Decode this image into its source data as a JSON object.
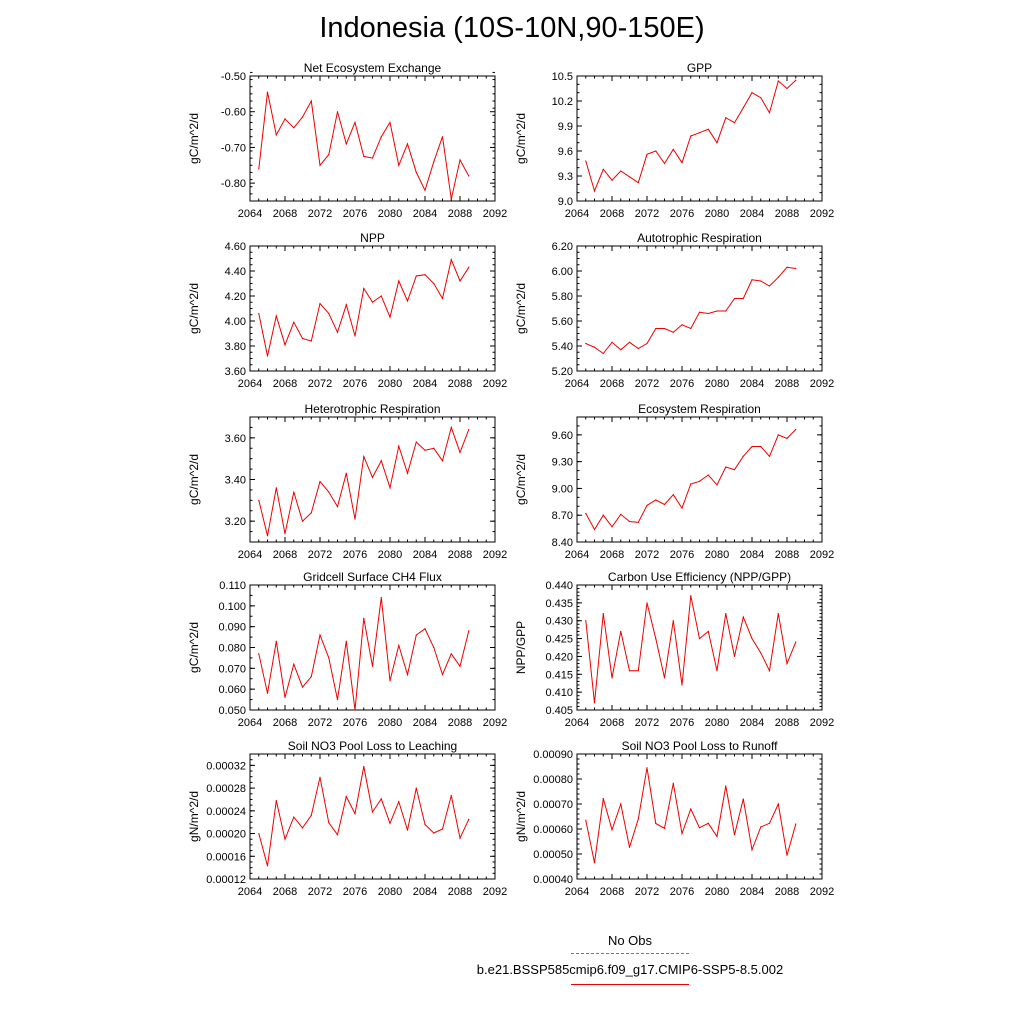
{
  "title": "Indonesia (10S-10N,90-150E)",
  "legend": {
    "obs_label": "No Obs",
    "case_label": "b.e21.BSSP585cmip6.f09_g17.CMIP6-SSP5-8.5.002",
    "obs_color": "#6666ee",
    "case_color": "#ee0000"
  },
  "chart_data": [
    {
      "type": "line",
      "title": "Net Ecosystem Exchange",
      "ylabel": "gC/m^2/d",
      "xlim": [
        2064,
        2092
      ],
      "xticks": [
        2064,
        2068,
        2072,
        2076,
        2080,
        2084,
        2088,
        2092
      ],
      "ylim": [
        -0.85,
        -0.5
      ],
      "yticks": [
        -0.8,
        -0.7,
        -0.6,
        -0.5
      ],
      "ytick_labels": [
        "-0.80",
        "-0.70",
        "-0.60",
        "-0.50"
      ],
      "minor_y": 0.02,
      "color": "#ee0000",
      "x": [
        2065,
        2066,
        2067,
        2068,
        2069,
        2070,
        2071,
        2072,
        2073,
        2074,
        2075,
        2076,
        2077,
        2078,
        2079,
        2080,
        2081,
        2082,
        2083,
        2084,
        2085,
        2086,
        2087,
        2088,
        2089
      ],
      "values": [
        -0.76,
        -0.545,
        -0.665,
        -0.62,
        -0.645,
        -0.615,
        -0.57,
        -0.75,
        -0.72,
        -0.6,
        -0.69,
        -0.63,
        -0.725,
        -0.73,
        -0.67,
        -0.63,
        -0.75,
        -0.69,
        -0.77,
        -0.82,
        -0.74,
        -0.67,
        -0.845,
        -0.735,
        -0.78
      ]
    },
    {
      "type": "line",
      "title": "GPP",
      "ylabel": "gC/m^2/d",
      "xlim": [
        2064,
        2092
      ],
      "xticks": [
        2064,
        2068,
        2072,
        2076,
        2080,
        2084,
        2088,
        2092
      ],
      "ylim": [
        9.0,
        10.5
      ],
      "yticks": [
        9.0,
        9.3,
        9.6,
        9.9,
        10.2,
        10.5
      ],
      "ytick_labels": [
        "9.0",
        "9.3",
        "9.6",
        "9.9",
        "10.2",
        "10.5"
      ],
      "minor_y": 0.1,
      "color": "#ee0000",
      "x": [
        2065,
        2066,
        2067,
        2068,
        2069,
        2070,
        2071,
        2072,
        2073,
        2074,
        2075,
        2076,
        2077,
        2078,
        2079,
        2080,
        2081,
        2082,
        2083,
        2084,
        2085,
        2086,
        2087,
        2088,
        2089
      ],
      "values": [
        9.48,
        9.12,
        9.38,
        9.25,
        9.36,
        9.29,
        9.22,
        9.56,
        9.6,
        9.45,
        9.62,
        9.46,
        9.78,
        9.82,
        9.86,
        9.7,
        10.0,
        9.94,
        10.12,
        10.3,
        10.24,
        10.06,
        10.44,
        10.35,
        10.45
      ]
    },
    {
      "type": "line",
      "title": "NPP",
      "ylabel": "gC/m^2/d",
      "xlim": [
        2064,
        2092
      ],
      "xticks": [
        2064,
        2068,
        2072,
        2076,
        2080,
        2084,
        2088,
        2092
      ],
      "ylim": [
        3.6,
        4.6
      ],
      "yticks": [
        3.6,
        3.8,
        4.0,
        4.2,
        4.4,
        4.6
      ],
      "ytick_labels": [
        "3.60",
        "3.80",
        "4.00",
        "4.20",
        "4.40",
        "4.60"
      ],
      "minor_y": 0.05,
      "color": "#ee0000",
      "x": [
        2065,
        2066,
        2067,
        2068,
        2069,
        2070,
        2071,
        2072,
        2073,
        2074,
        2075,
        2076,
        2077,
        2078,
        2079,
        2080,
        2081,
        2082,
        2083,
        2084,
        2085,
        2086,
        2087,
        2088,
        2089
      ],
      "values": [
        4.06,
        3.72,
        4.04,
        3.81,
        3.99,
        3.86,
        3.84,
        4.14,
        4.06,
        3.91,
        4.13,
        3.88,
        4.26,
        4.15,
        4.2,
        4.03,
        4.32,
        4.16,
        4.36,
        4.37,
        4.3,
        4.18,
        4.49,
        4.32,
        4.43
      ]
    },
    {
      "type": "line",
      "title": "Autotrophic Respiration",
      "ylabel": "gC/m^2/d",
      "xlim": [
        2064,
        2092
      ],
      "xticks": [
        2064,
        2068,
        2072,
        2076,
        2080,
        2084,
        2088,
        2092
      ],
      "ylim": [
        5.2,
        6.2
      ],
      "yticks": [
        5.2,
        5.4,
        5.6,
        5.8,
        6.0,
        6.2
      ],
      "ytick_labels": [
        "5.20",
        "5.40",
        "5.60",
        "5.80",
        "6.00",
        "6.20"
      ],
      "minor_y": 0.05,
      "color": "#ee0000",
      "x": [
        2065,
        2066,
        2067,
        2068,
        2069,
        2070,
        2071,
        2072,
        2073,
        2074,
        2075,
        2076,
        2077,
        2078,
        2079,
        2080,
        2081,
        2082,
        2083,
        2084,
        2085,
        2086,
        2087,
        2088,
        2089
      ],
      "values": [
        5.42,
        5.39,
        5.34,
        5.43,
        5.37,
        5.43,
        5.38,
        5.42,
        5.54,
        5.54,
        5.51,
        5.57,
        5.54,
        5.67,
        5.66,
        5.68,
        5.68,
        5.78,
        5.78,
        5.93,
        5.92,
        5.88,
        5.95,
        6.03,
        6.02
      ]
    },
    {
      "type": "line",
      "title": "Heterotrophic Respiration",
      "ylabel": "gC/m^2/d",
      "xlim": [
        2064,
        2092
      ],
      "xticks": [
        2064,
        2068,
        2072,
        2076,
        2080,
        2084,
        2088,
        2092
      ],
      "ylim": [
        3.1,
        3.7
      ],
      "yticks": [
        3.2,
        3.4,
        3.6
      ],
      "ytick_labels": [
        "3.20",
        "3.40",
        "3.60"
      ],
      "minor_y": 0.05,
      "color": "#ee0000",
      "x": [
        2065,
        2066,
        2067,
        2068,
        2069,
        2070,
        2071,
        2072,
        2073,
        2074,
        2075,
        2076,
        2077,
        2078,
        2079,
        2080,
        2081,
        2082,
        2083,
        2084,
        2085,
        2086,
        2087,
        2088,
        2089
      ],
      "values": [
        3.3,
        3.13,
        3.36,
        3.14,
        3.34,
        3.2,
        3.24,
        3.39,
        3.34,
        3.27,
        3.43,
        3.21,
        3.51,
        3.41,
        3.49,
        3.36,
        3.56,
        3.43,
        3.58,
        3.54,
        3.55,
        3.49,
        3.65,
        3.53,
        3.64
      ]
    },
    {
      "type": "line",
      "title": "Ecosystem Respiration",
      "ylabel": "gC/m^2/d",
      "xlim": [
        2064,
        2092
      ],
      "xticks": [
        2064,
        2068,
        2072,
        2076,
        2080,
        2084,
        2088,
        2092
      ],
      "ylim": [
        8.4,
        9.8
      ],
      "yticks": [
        8.4,
        8.7,
        9.0,
        9.3,
        9.6
      ],
      "ytick_labels": [
        "8.40",
        "8.70",
        "9.00",
        "9.30",
        "9.60"
      ],
      "minor_y": 0.1,
      "color": "#ee0000",
      "x": [
        2065,
        2066,
        2067,
        2068,
        2069,
        2070,
        2071,
        2072,
        2073,
        2074,
        2075,
        2076,
        2077,
        2078,
        2079,
        2080,
        2081,
        2082,
        2083,
        2084,
        2085,
        2086,
        2087,
        2088,
        2089
      ],
      "values": [
        8.72,
        8.54,
        8.7,
        8.57,
        8.71,
        8.63,
        8.62,
        8.81,
        8.87,
        8.82,
        8.93,
        8.78,
        9.05,
        9.08,
        9.15,
        9.04,
        9.24,
        9.21,
        9.36,
        9.47,
        9.47,
        9.36,
        9.6,
        9.56,
        9.66
      ]
    },
    {
      "type": "line",
      "title": "Gridcell Surface CH4 Flux",
      "ylabel": "gC/m^2/d",
      "xlim": [
        2064,
        2092
      ],
      "xticks": [
        2064,
        2068,
        2072,
        2076,
        2080,
        2084,
        2088,
        2092
      ],
      "ylim": [
        0.05,
        0.11
      ],
      "yticks": [
        0.05,
        0.06,
        0.07,
        0.08,
        0.09,
        0.1,
        0.11
      ],
      "ytick_labels": [
        "0.050",
        "0.060",
        "0.070",
        "0.080",
        "0.090",
        "0.100",
        "0.110"
      ],
      "minor_y": 0.005,
      "color": "#ee0000",
      "x": [
        2065,
        2066,
        2067,
        2068,
        2069,
        2070,
        2071,
        2072,
        2073,
        2074,
        2075,
        2076,
        2077,
        2078,
        2079,
        2080,
        2081,
        2082,
        2083,
        2084,
        2085,
        2086,
        2087,
        2088,
        2089
      ],
      "values": [
        0.077,
        0.058,
        0.083,
        0.056,
        0.072,
        0.061,
        0.066,
        0.086,
        0.075,
        0.055,
        0.083,
        0.05,
        0.094,
        0.071,
        0.104,
        0.064,
        0.081,
        0.067,
        0.086,
        0.089,
        0.08,
        0.067,
        0.077,
        0.071,
        0.088
      ]
    },
    {
      "type": "line",
      "title": "Carbon Use Efficiency (NPP/GPP)",
      "ylabel": "NPP/GPP",
      "xlim": [
        2064,
        2092
      ],
      "xticks": [
        2064,
        2068,
        2072,
        2076,
        2080,
        2084,
        2088,
        2092
      ],
      "ylim": [
        0.405,
        0.44
      ],
      "yticks": [
        0.405,
        0.41,
        0.415,
        0.42,
        0.425,
        0.43,
        0.435,
        0.44
      ],
      "ytick_labels": [
        "0.405",
        "0.410",
        "0.415",
        "0.420",
        "0.425",
        "0.430",
        "0.435",
        "0.440"
      ],
      "minor_y": 0.001,
      "color": "#ee0000",
      "x": [
        2065,
        2066,
        2067,
        2068,
        2069,
        2070,
        2071,
        2072,
        2073,
        2074,
        2075,
        2076,
        2077,
        2078,
        2079,
        2080,
        2081,
        2082,
        2083,
        2084,
        2085,
        2086,
        2087,
        2088,
        2089
      ],
      "values": [
        0.43,
        0.407,
        0.432,
        0.414,
        0.427,
        0.416,
        0.416,
        0.435,
        0.425,
        0.414,
        0.43,
        0.412,
        0.437,
        0.425,
        0.427,
        0.416,
        0.432,
        0.42,
        0.431,
        0.425,
        0.421,
        0.416,
        0.432,
        0.418,
        0.424
      ]
    },
    {
      "type": "line",
      "title": "Soil NO3 Pool Loss to Leaching",
      "ylabel": "gN/m^2/d",
      "xlim": [
        2064,
        2092
      ],
      "xticks": [
        2064,
        2068,
        2072,
        2076,
        2080,
        2084,
        2088,
        2092
      ],
      "ylim": [
        0.00012,
        0.00034
      ],
      "yticks": [
        0.00012,
        0.00016,
        0.0002,
        0.00024,
        0.00028,
        0.00032
      ],
      "ytick_labels": [
        "0.00012",
        "0.00016",
        "0.00020",
        "0.00024",
        "0.00028",
        "0.00032"
      ],
      "minor_y": 1e-05,
      "color": "#ee0000",
      "x": [
        2065,
        2066,
        2067,
        2068,
        2069,
        2070,
        2071,
        2072,
        2073,
        2074,
        2075,
        2076,
        2077,
        2078,
        2079,
        2080,
        2081,
        2082,
        2083,
        2084,
        2085,
        2086,
        2087,
        2088,
        2089
      ],
      "values": [
        0.0002,
        0.000143,
        0.000258,
        0.00019,
        0.000229,
        0.00021,
        0.000232,
        0.000299,
        0.000219,
        0.000198,
        0.000265,
        0.000235,
        0.000318,
        0.000238,
        0.000261,
        0.000218,
        0.000256,
        0.000206,
        0.00028,
        0.000216,
        0.000201,
        0.000208,
        0.000267,
        0.000192,
        0.000225
      ]
    },
    {
      "type": "line",
      "title": "Soil NO3 Pool Loss to Runoff",
      "ylabel": "gN/m^2/d",
      "xlim": [
        2064,
        2092
      ],
      "xticks": [
        2064,
        2068,
        2072,
        2076,
        2080,
        2084,
        2088,
        2092
      ],
      "ylim": [
        0.0004,
        0.0009
      ],
      "yticks": [
        0.0004,
        0.0005,
        0.0006,
        0.0007,
        0.0008,
        0.0009
      ],
      "ytick_labels": [
        "0.00040",
        "0.00050",
        "0.00060",
        "0.00070",
        "0.00080",
        "0.00090"
      ],
      "minor_y": 2e-05,
      "color": "#ee0000",
      "x": [
        2065,
        2066,
        2067,
        2068,
        2069,
        2070,
        2071,
        2072,
        2073,
        2074,
        2075,
        2076,
        2077,
        2078,
        2079,
        2080,
        2081,
        2082,
        2083,
        2084,
        2085,
        2086,
        2087,
        2088,
        2089
      ],
      "values": [
        0.000635,
        0.000465,
        0.000722,
        0.000597,
        0.0007,
        0.000527,
        0.00064,
        0.000845,
        0.000622,
        0.000603,
        0.000783,
        0.000582,
        0.00068,
        0.000605,
        0.000623,
        0.00057,
        0.000772,
        0.000577,
        0.00072,
        0.000517,
        0.000608,
        0.000623,
        0.0007,
        0.000495,
        0.00062
      ]
    }
  ]
}
